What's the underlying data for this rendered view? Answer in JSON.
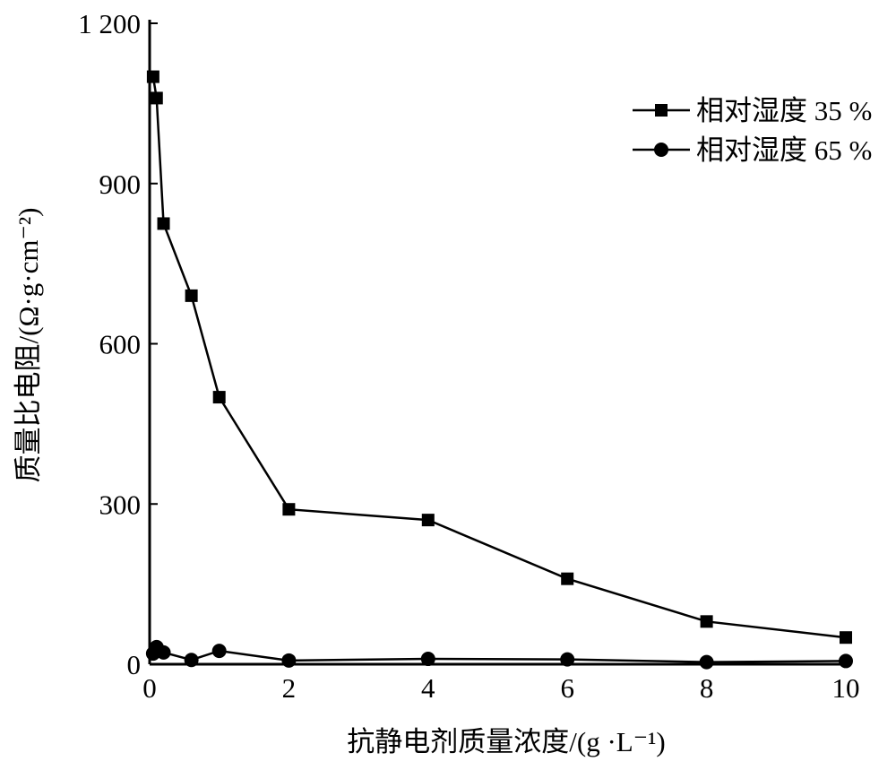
{
  "chart_data": {
    "type": "line",
    "xlabel": "抗静电剂质量浓度/(g ·L⁻¹)",
    "ylabel": "质量比电阻/(Ω·g·cm⁻²)",
    "xlim": [
      0,
      10
    ],
    "ylim": [
      0,
      1200
    ],
    "xticks": [
      0,
      2,
      4,
      6,
      8,
      10
    ],
    "xtick_labels": [
      "0",
      "2",
      "4",
      "6",
      "8",
      "10"
    ],
    "yticks": [
      0,
      300,
      600,
      900,
      1200
    ],
    "ytick_labels": [
      "0",
      "300",
      "600",
      "900",
      "1 200"
    ],
    "grid": false,
    "legend_position": "top-right",
    "series": [
      {
        "name": "相对湿度 35 %",
        "marker": "square",
        "color": "#000000",
        "x": [
          0.05,
          0.1,
          0.2,
          0.6,
          1,
          2,
          4,
          6,
          8,
          10
        ],
        "y": [
          1100,
          1060,
          825,
          690,
          500,
          290,
          270,
          160,
          80,
          50
        ]
      },
      {
        "name": "相对湿度 65 %",
        "marker": "circle",
        "color": "#000000",
        "x": [
          0.05,
          0.1,
          0.2,
          0.6,
          1,
          2,
          4,
          6,
          8,
          10
        ],
        "y": [
          20,
          32,
          22,
          8,
          25,
          7,
          10,
          9,
          4,
          6
        ]
      }
    ]
  }
}
